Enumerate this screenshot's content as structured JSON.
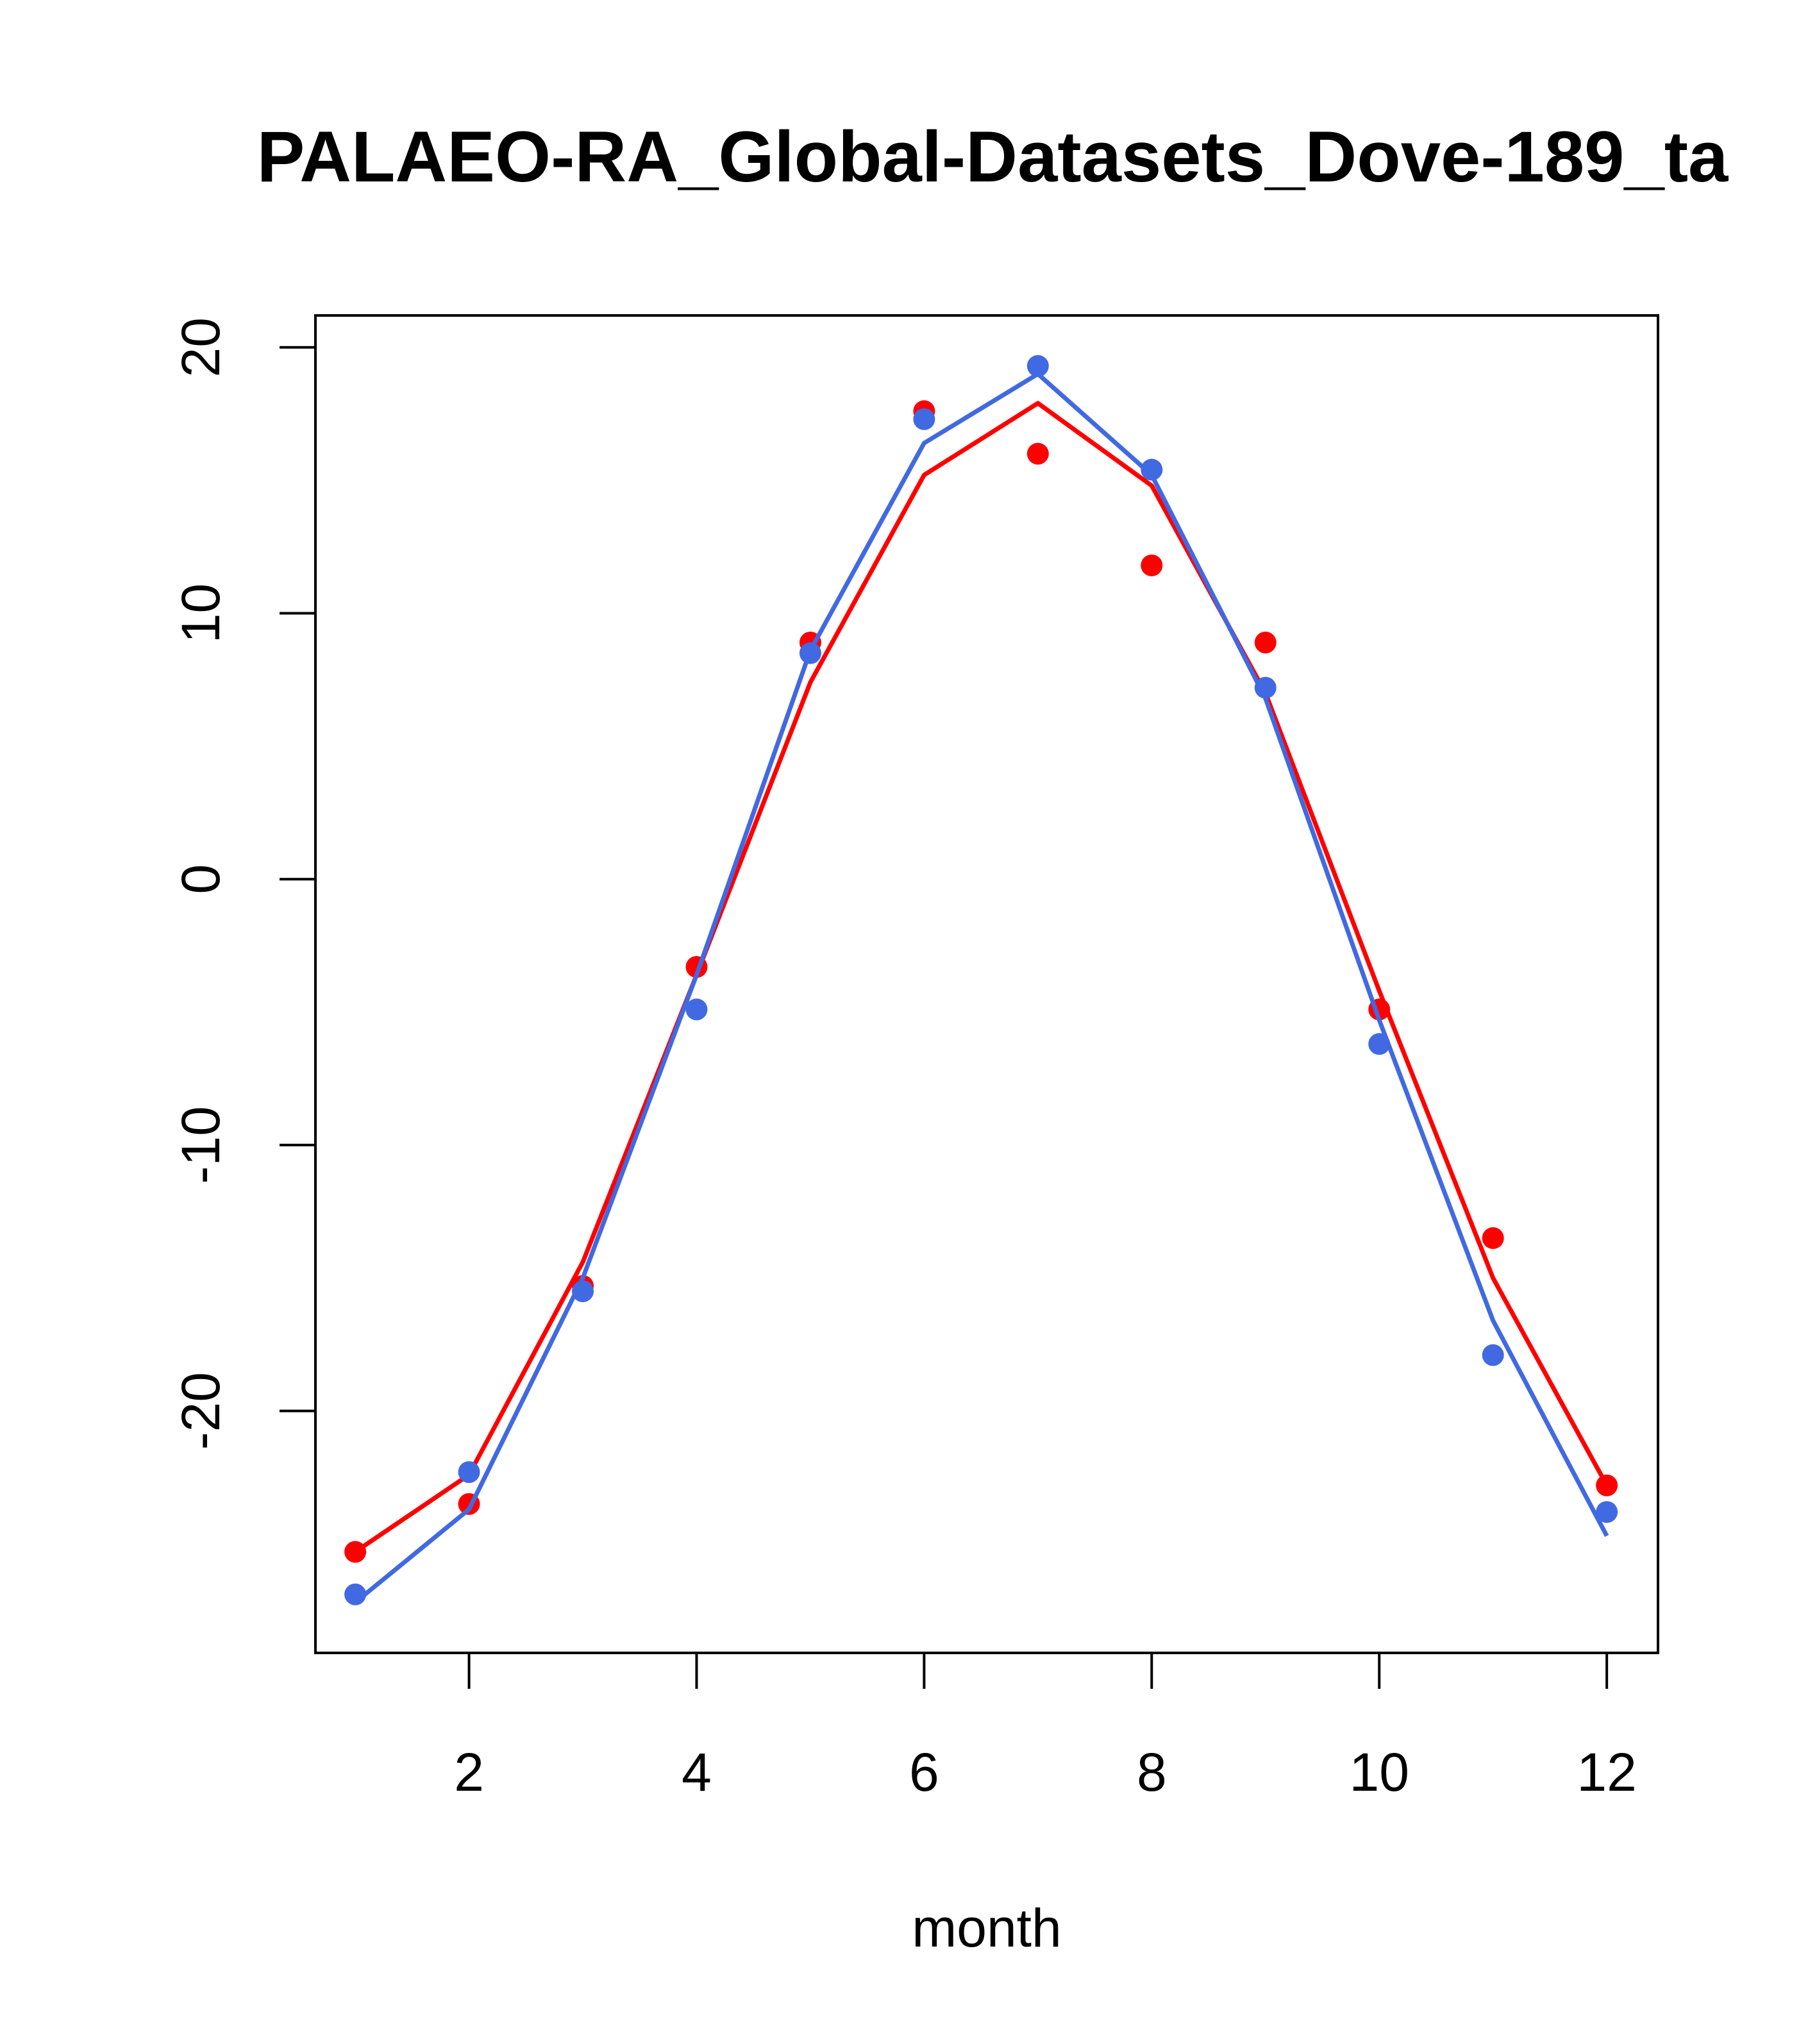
{
  "chart_data": {
    "type": "line",
    "title": "PALAEO-RA_Global-Datasets_Dove-189_ta",
    "xlabel": "month",
    "ylabel": "",
    "xlim": [
      0.65,
      12.45
    ],
    "ylim": [
      -29.1,
      21.2
    ],
    "x_ticks": [
      2,
      4,
      6,
      8,
      10,
      12
    ],
    "y_ticks": [
      -20,
      -10,
      0,
      10,
      20
    ],
    "x": [
      1,
      2,
      3,
      4,
      5,
      6,
      7,
      8,
      9,
      10,
      11,
      12
    ],
    "series": [
      {
        "color": "#ff0000",
        "points": [
          -25.3,
          -23.5,
          -15.3,
          -3.3,
          8.9,
          17.6,
          16.0,
          11.8,
          8.9,
          -4.9,
          -13.5,
          -22.8
        ],
        "line": [
          -25.3,
          -22.4,
          -14.4,
          -3.6,
          7.4,
          15.2,
          17.9,
          14.8,
          7.0,
          -4.2,
          -15.0,
          -22.8
        ]
      },
      {
        "color": "#4169e1",
        "points": [
          -26.9,
          -22.3,
          -15.5,
          -4.9,
          8.5,
          17.3,
          19.3,
          15.4,
          7.2,
          -6.2,
          -17.9,
          -23.8
        ],
        "line": [
          -27.2,
          -23.7,
          -15.0,
          -3.6,
          8.6,
          16.4,
          19.0,
          15.2,
          6.8,
          -5.3,
          -16.6,
          -24.7
        ]
      }
    ]
  }
}
